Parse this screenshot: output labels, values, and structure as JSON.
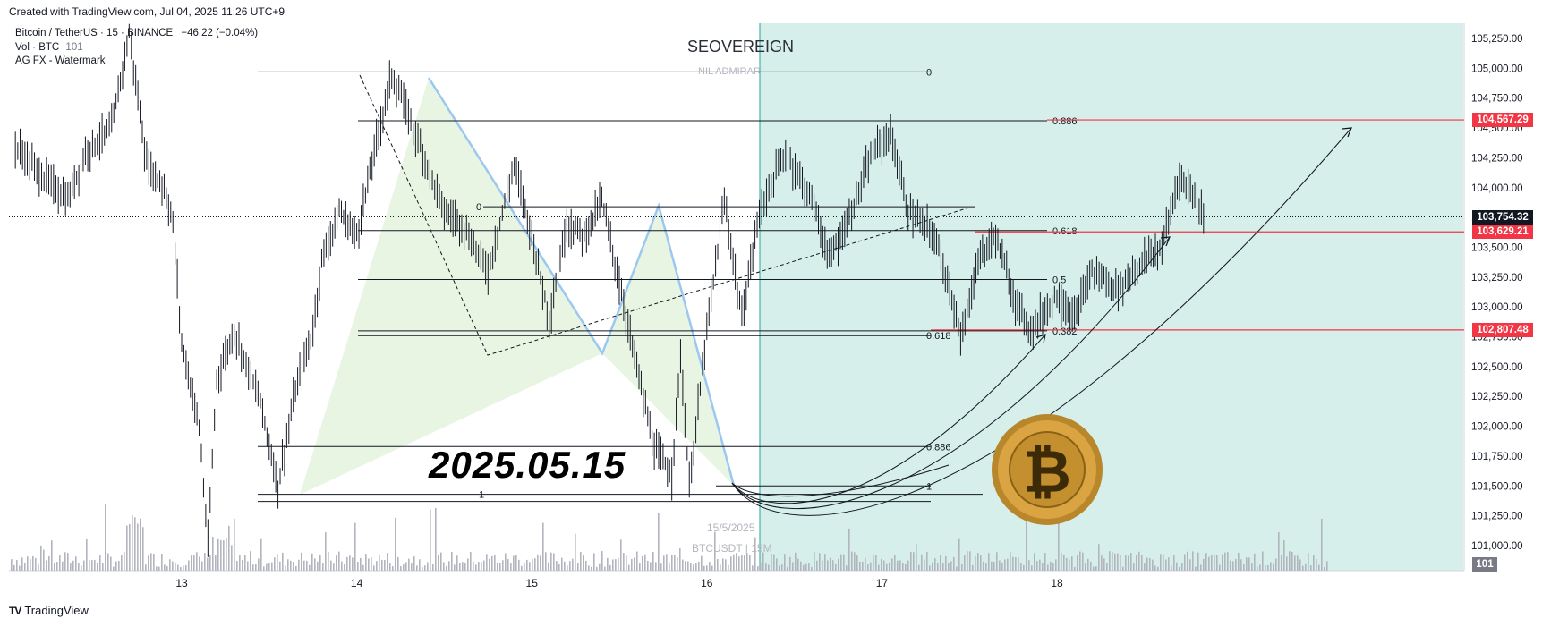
{
  "header": {
    "created_note": "Created with TradingView.com, Jul 04, 2025 11:26 UTC+9"
  },
  "legend": {
    "symbol_line": "Bitcoin / TetherUS · 15 · BINANCE",
    "change": "−46.22 (−0.04%)",
    "volume_label": "Vol · BTC",
    "volume_value": "101",
    "indicator": "AG FX - Watermark"
  },
  "footer": {
    "brand": "TradingView",
    "logo": "tv-logo"
  },
  "watermark": {
    "title": "SEOVEREIGN",
    "subtitle": "NIL ADMIRARI",
    "date_text": "15/5/2025",
    "symbol_text": "BTCUSDT | 15M"
  },
  "annotation": {
    "big_date": "2025.05.15"
  },
  "colors": {
    "bullish_zone": "#d6efea",
    "pattern_fill": "#e8f5e3",
    "harmonic_line": "#9cc8f0",
    "resistance_red": "#f23645",
    "last_price_bg": "#131722",
    "volume_bar": "#b2b5be"
  },
  "chart_data": {
    "type": "line",
    "symbol": "BTCUSDT",
    "interval": "15",
    "ylim": [
      100800,
      105400
    ],
    "x_tick_labels": [
      "13",
      "14",
      "15",
      "16",
      "17",
      "18"
    ],
    "y_tick_labels": [
      "105,250.00",
      "105,000.00",
      "104,750.00",
      "104,500.00",
      "104,250.00",
      "104,000.00",
      "103,750.00",
      "103,500.00",
      "103,250.00",
      "103,000.00",
      "102,750.00",
      "102,500.00",
      "102,250.00",
      "102,000.00",
      "101,750.00",
      "101,500.00",
      "101,250.00",
      "101,000.00"
    ],
    "y_tick_values": [
      105250,
      105000,
      104750,
      104500,
      104250,
      104000,
      103750,
      103500,
      103250,
      103000,
      102750,
      102500,
      102250,
      102000,
      101750,
      101500,
      101250,
      101000
    ],
    "price_path": [
      {
        "x": 12.05,
        "y": 104350
      },
      {
        "x": 12.2,
        "y": 104100
      },
      {
        "x": 12.35,
        "y": 103900
      },
      {
        "x": 12.45,
        "y": 104300
      },
      {
        "x": 12.6,
        "y": 104500
      },
      {
        "x": 12.7,
        "y": 105300
      },
      {
        "x": 12.8,
        "y": 104200
      },
      {
        "x": 12.9,
        "y": 104000
      },
      {
        "x": 12.95,
        "y": 103700
      },
      {
        "x": 13.0,
        "y": 102700
      },
      {
        "x": 13.1,
        "y": 102000
      },
      {
        "x": 13.15,
        "y": 101000
      },
      {
        "x": 13.2,
        "y": 102400
      },
      {
        "x": 13.3,
        "y": 102800
      },
      {
        "x": 13.45,
        "y": 102200
      },
      {
        "x": 13.55,
        "y": 101500
      },
      {
        "x": 13.65,
        "y": 102300
      },
      {
        "x": 13.75,
        "y": 102800
      },
      {
        "x": 13.8,
        "y": 103400
      },
      {
        "x": 13.9,
        "y": 103800
      },
      {
        "x": 14.0,
        "y": 103600
      },
      {
        "x": 14.1,
        "y": 104300
      },
      {
        "x": 14.2,
        "y": 104950
      },
      {
        "x": 14.35,
        "y": 104400
      },
      {
        "x": 14.5,
        "y": 103800
      },
      {
        "x": 14.6,
        "y": 103700
      },
      {
        "x": 14.75,
        "y": 103300
      },
      {
        "x": 14.9,
        "y": 104200
      },
      {
        "x": 15.0,
        "y": 103600
      },
      {
        "x": 15.1,
        "y": 102900
      },
      {
        "x": 15.2,
        "y": 103700
      },
      {
        "x": 15.3,
        "y": 103600
      },
      {
        "x": 15.4,
        "y": 103900
      },
      {
        "x": 15.5,
        "y": 103200
      },
      {
        "x": 15.6,
        "y": 102500
      },
      {
        "x": 15.7,
        "y": 101800
      },
      {
        "x": 15.8,
        "y": 101600
      },
      {
        "x": 15.85,
        "y": 102600
      },
      {
        "x": 15.9,
        "y": 101500
      },
      {
        "x": 16.0,
        "y": 102800
      },
      {
        "x": 16.1,
        "y": 103900
      },
      {
        "x": 16.2,
        "y": 102900
      },
      {
        "x": 16.3,
        "y": 103800
      },
      {
        "x": 16.45,
        "y": 104300
      },
      {
        "x": 16.6,
        "y": 103900
      },
      {
        "x": 16.7,
        "y": 103400
      },
      {
        "x": 16.8,
        "y": 103700
      },
      {
        "x": 16.95,
        "y": 104300
      },
      {
        "x": 17.05,
        "y": 104450
      },
      {
        "x": 17.15,
        "y": 103800
      },
      {
        "x": 17.3,
        "y": 103600
      },
      {
        "x": 17.4,
        "y": 103100
      },
      {
        "x": 17.45,
        "y": 102700
      },
      {
        "x": 17.55,
        "y": 103400
      },
      {
        "x": 17.65,
        "y": 103600
      },
      {
        "x": 17.75,
        "y": 103100
      },
      {
        "x": 17.85,
        "y": 102800
      },
      {
        "x": 18.0,
        "y": 103100
      },
      {
        "x": 18.1,
        "y": 102900
      },
      {
        "x": 18.2,
        "y": 103300
      },
      {
        "x": 18.35,
        "y": 103150
      },
      {
        "x": 18.5,
        "y": 103400
      },
      {
        "x": 18.6,
        "y": 103500
      },
      {
        "x": 18.7,
        "y": 104100
      },
      {
        "x": 18.8,
        "y": 103900
      },
      {
        "x": 18.85,
        "y": 103754
      }
    ],
    "fib_levels_left": [
      {
        "label": "0",
        "price": 104970
      },
      {
        "label": "0.886",
        "price": 104560
      },
      {
        "label": "0.618",
        "price": 102760
      },
      {
        "label": "0.886",
        "price": 101830
      },
      {
        "label": "1",
        "price": 101430
      }
    ],
    "fib_levels_right": [
      {
        "label": "0",
        "price": 103840
      },
      {
        "label": "0.618",
        "price": 103640
      },
      {
        "label": "0.5",
        "price": 103230
      },
      {
        "label": "0.382",
        "price": 102800
      },
      {
        "label": "1",
        "price": 101500
      }
    ],
    "horizontal_levels": [
      {
        "value": 104567.29,
        "label": "104,567.29",
        "color": "#f23645"
      },
      {
        "value": 103629.21,
        "label": "103,629.21",
        "color": "#f23645"
      },
      {
        "value": 102807.48,
        "label": "102,807.48",
        "color": "#f23645"
      }
    ],
    "last_price": {
      "value": 103754.32,
      "label": "103,754.32"
    },
    "volume_badge": "101"
  }
}
